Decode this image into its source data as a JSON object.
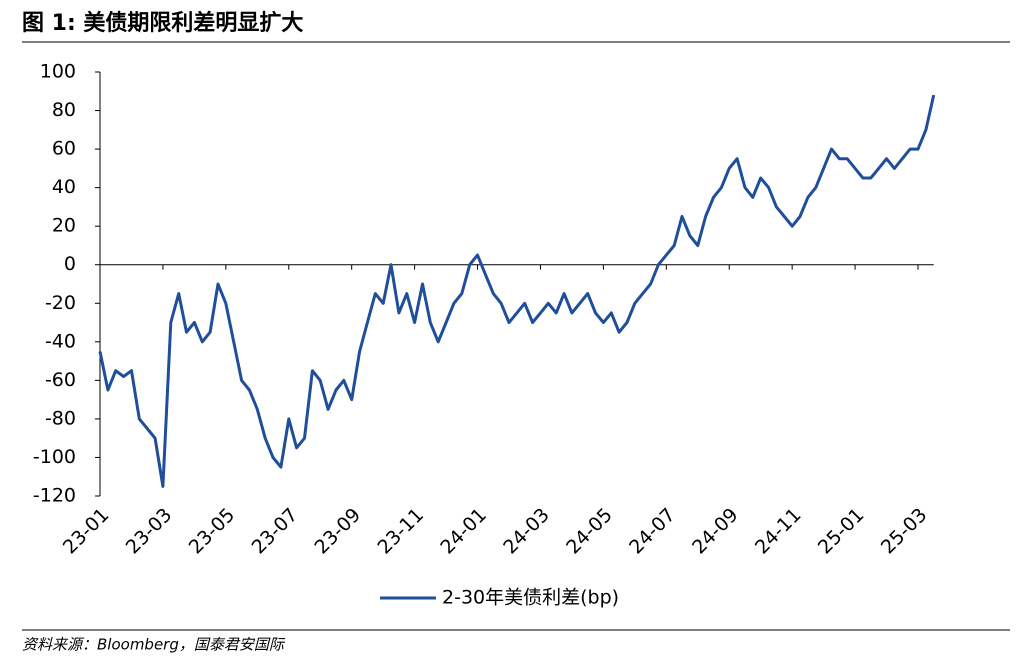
{
  "chart_data": {
    "type": "line",
    "title": "图 1:  美债期限利差明显扩大",
    "source": "资料来源：Bloomberg，国泰君安国际",
    "categories": [
      "23-01",
      null,
      null,
      null,
      null,
      null,
      null,
      null,
      "23-03",
      null,
      null,
      null,
      null,
      null,
      null,
      null,
      "23-05",
      null,
      null,
      null,
      null,
      null,
      null,
      null,
      "23-07",
      null,
      null,
      null,
      null,
      null,
      null,
      null,
      "23-09",
      null,
      null,
      null,
      null,
      null,
      null,
      null,
      "23-11",
      null,
      null,
      null,
      null,
      null,
      null,
      null,
      "24-01",
      null,
      null,
      null,
      null,
      null,
      null,
      null,
      "24-03",
      null,
      null,
      null,
      null,
      null,
      null,
      null,
      "24-05",
      null,
      null,
      null,
      null,
      null,
      null,
      null,
      "24-07",
      null,
      null,
      null,
      null,
      null,
      null,
      null,
      "24-09",
      null,
      null,
      null,
      null,
      null,
      null,
      null,
      "24-11",
      null,
      null,
      null,
      null,
      null,
      null,
      null,
      "25-01",
      null,
      null,
      null,
      null,
      null,
      null,
      null,
      "25-03",
      null,
      null
    ],
    "series": [
      {
        "name": "2-30年美债利差(bp)",
        "color": "#1f4e9a",
        "values": [
          -45,
          -65,
          -55,
          -58,
          -55,
          -80,
          -85,
          -90,
          -115,
          -30,
          -15,
          -35,
          -30,
          -40,
          -35,
          -10,
          -20,
          -40,
          -60,
          -65,
          -75,
          -90,
          -100,
          -105,
          -80,
          -95,
          -90,
          -55,
          -60,
          -75,
          -65,
          -60,
          -70,
          -45,
          -30,
          -15,
          -20,
          0,
          -25,
          -15,
          -30,
          -10,
          -30,
          -40,
          -30,
          -20,
          -15,
          0,
          5,
          -5,
          -15,
          -20,
          -30,
          -25,
          -20,
          -30,
          -25,
          -20,
          -25,
          -15,
          -25,
          -20,
          -15,
          -25,
          -30,
          -25,
          -35,
          -30,
          -20,
          -15,
          -10,
          0,
          5,
          10,
          25,
          15,
          10,
          25,
          35,
          40,
          50,
          55,
          40,
          35,
          45,
          40,
          30,
          25,
          20,
          25,
          35,
          40,
          50,
          60,
          55,
          55,
          50,
          45,
          45,
          50,
          55,
          50,
          55,
          60,
          60,
          70,
          88
        ]
      }
    ],
    "ylim": [
      -120,
      100
    ],
    "yticks": [
      -120,
      -100,
      -80,
      -60,
      -40,
      -20,
      0,
      20,
      40,
      60,
      80,
      100
    ],
    "legend": "bottom"
  }
}
